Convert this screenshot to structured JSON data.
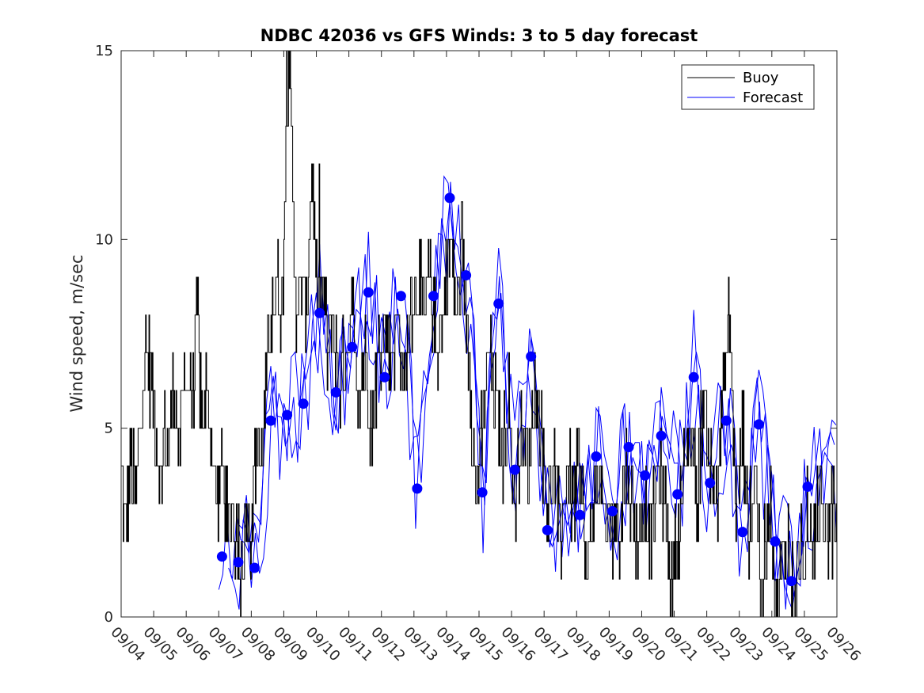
{
  "chart_data": {
    "type": "line",
    "title": "NDBC 42036 vs GFS Winds: 3 to 5 day forecast",
    "xlabel": "",
    "ylabel": "Wind speed, m/sec",
    "ylim": [
      0,
      15
    ],
    "xlim": [
      0,
      22
    ],
    "yticks": [
      0,
      5,
      10,
      15
    ],
    "xtick_labels": [
      "09/04",
      "09/05",
      "09/06",
      "09/07",
      "09/08",
      "09/09",
      "09/10",
      "09/11",
      "09/12",
      "09/13",
      "09/14",
      "09/15",
      "09/16",
      "09/17",
      "09/18",
      "09/19",
      "09/20",
      "09/21",
      "09/22",
      "09/23",
      "09/24",
      "09/25",
      "09/26"
    ],
    "legend": {
      "position": "top-right",
      "entries": [
        {
          "name": "Buoy",
          "color": "#000000"
        },
        {
          "name": "Forecast",
          "color": "#0000ff"
        }
      ]
    },
    "buoy_key_points": {
      "x": [
        0,
        0.1,
        0.2,
        0.3,
        0.45,
        0.55,
        0.65,
        0.8,
        0.95,
        1.1,
        1.2,
        1.3,
        1.45,
        1.55,
        1.65,
        1.8,
        1.95,
        2.05,
        2.2,
        2.35,
        2.45,
        2.6,
        2.75,
        2.95,
        3.05,
        3.2,
        3.3,
        3.4,
        3.5,
        3.65,
        3.75,
        3.85,
        3.95,
        4.1,
        4.2,
        4.3,
        4.45,
        4.6,
        4.8,
        4.95,
        5.05,
        5.15,
        5.25,
        5.3,
        5.4,
        5.55,
        5.7,
        5.85,
        6.0,
        6.05,
        6.2,
        6.35,
        6.5,
        6.7,
        6.9,
        7.1,
        7.3,
        7.5,
        7.7,
        7.9,
        8.1,
        8.3,
        8.5,
        8.7,
        8.9,
        9.1,
        9.3,
        9.5,
        9.7,
        9.9,
        10.1,
        10.3,
        10.5,
        10.7,
        10.9,
        11.1,
        11.3,
        11.5,
        11.7,
        11.9,
        12.1,
        12.3,
        12.5,
        12.7,
        12.9,
        13.1,
        13.3,
        13.5,
        13.7,
        13.9,
        14.1,
        14.3,
        14.5,
        14.7,
        14.9,
        15.1,
        15.3,
        15.5,
        15.7,
        15.9,
        16.1,
        16.3,
        16.5,
        16.7,
        16.9,
        17.1,
        17.3,
        17.5,
        17.7,
        17.9,
        18.1,
        18.3,
        18.5,
        18.7,
        18.9,
        19.1,
        19.3,
        19.5,
        19.7,
        19.9,
        20.0,
        20.1,
        20.3,
        20.5,
        20.7,
        20.9,
        21.1,
        21.3,
        21.5,
        21.7,
        21.9,
        22.0
      ],
      "y": [
        4,
        2,
        3,
        4,
        3,
        5,
        6,
        7,
        6,
        5,
        3,
        5,
        4,
        6,
        6,
        4,
        7,
        6,
        6,
        8,
        5,
        6,
        5,
        3,
        4,
        3,
        2,
        3,
        2,
        1,
        2,
        3,
        2,
        4,
        5,
        4,
        6,
        8,
        9,
        8,
        12,
        15,
        12,
        10,
        8,
        9,
        8,
        12,
        9,
        8,
        9,
        7,
        8,
        6,
        7,
        8,
        6,
        7,
        5,
        7,
        8,
        7,
        8,
        6,
        8,
        9,
        8,
        9,
        7,
        8,
        10,
        8,
        9,
        7,
        3,
        5,
        7,
        6,
        4,
        6,
        3,
        5,
        4,
        6,
        5,
        3,
        4,
        2,
        4,
        3,
        4,
        1,
        3,
        4,
        2,
        3,
        2,
        4,
        3,
        2,
        3,
        2,
        4,
        3,
        1,
        2,
        4,
        5,
        3,
        6,
        4,
        3,
        6,
        8,
        3,
        5,
        2,
        4,
        0,
        3,
        3,
        0,
        1,
        2,
        0,
        2,
        1,
        2,
        3,
        2,
        3,
        2
      ]
    },
    "forecast_daily_dots": {
      "x": [
        3.1,
        3.6,
        4.1,
        4.6,
        5.1,
        5.6,
        6.1,
        6.6,
        7.1,
        7.6,
        8.1,
        8.6,
        9.1,
        9.6,
        10.1,
        10.6,
        11.1,
        11.6,
        12.1,
        12.6,
        13.1,
        14.1,
        14.6,
        15.1,
        15.6,
        16.1,
        16.6,
        17.1,
        17.6,
        18.1,
        18.6,
        19.1,
        19.6,
        20.1,
        20.6,
        21.1
      ],
      "y": [
        1.6,
        1.45,
        1.3,
        5.2,
        5.35,
        5.65,
        8.05,
        5.95,
        7.15,
        8.6,
        6.35,
        8.5,
        3.4,
        8.5,
        11.1,
        9.05,
        3.3,
        8.3,
        3.9,
        6.9,
        2.3,
        2.7,
        4.25,
        2.8,
        4.5,
        3.75,
        4.8,
        3.25,
        6.35,
        3.55,
        5.2,
        2.25,
        5.1,
        2.0,
        0.95,
        3.45
      ]
    }
  }
}
